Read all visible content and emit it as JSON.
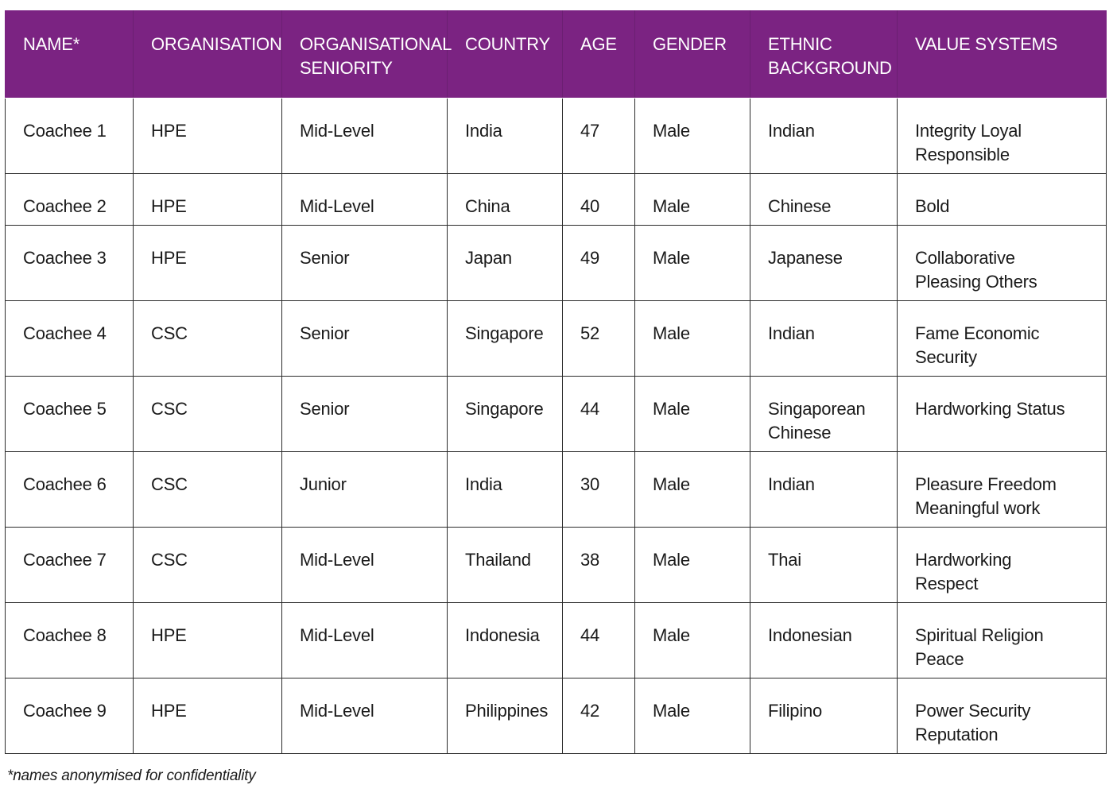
{
  "table": {
    "headers": [
      {
        "line1": "NAME*",
        "line2": ""
      },
      {
        "line1": "ORGANISATION",
        "line2": ""
      },
      {
        "line1": "ORGANISATIONAL",
        "line2": "SENIORITY"
      },
      {
        "line1": "COUNTRY",
        "line2": ""
      },
      {
        "line1": "AGE",
        "line2": ""
      },
      {
        "line1": "GENDER",
        "line2": ""
      },
      {
        "line1": "ETHNIC",
        "line2": "BACKGROUND"
      },
      {
        "line1": "VALUE SYSTEMS",
        "line2": ""
      }
    ],
    "rows": [
      {
        "name": "Coachee 1",
        "organisation": "HPE",
        "seniority": "Mid-Level",
        "country": "India",
        "age": "47",
        "gender": "Male",
        "ethnic_line1": "Indian",
        "ethnic_line2": "",
        "values_line1": "Integrity Loyal",
        "values_line2": "Responsible"
      },
      {
        "name": "Coachee 2",
        "organisation": "HPE",
        "seniority": "Mid-Level",
        "country": "China",
        "age": "40",
        "gender": "Male",
        "ethnic_line1": "Chinese",
        "ethnic_line2": "",
        "values_line1": "Bold",
        "values_line2": ""
      },
      {
        "name": "Coachee 3",
        "organisation": "HPE",
        "seniority": "Senior",
        "country": "Japan",
        "age": "49",
        "gender": "Male",
        "ethnic_line1": "Japanese",
        "ethnic_line2": "",
        "values_line1": "Collaborative",
        "values_line2": "Pleasing Others"
      },
      {
        "name": "Coachee 4",
        "organisation": "CSC",
        "seniority": "Senior",
        "country": "Singapore",
        "age": "52",
        "gender": "Male",
        "ethnic_line1": "Indian",
        "ethnic_line2": "",
        "values_line1": "Fame Economic",
        "values_line2": "Security"
      },
      {
        "name": "Coachee 5",
        "organisation": "CSC",
        "seniority": "Senior",
        "country": "Singapore",
        "age": "44",
        "gender": "Male",
        "ethnic_line1": "Singaporean",
        "ethnic_line2": "Chinese",
        "values_line1": "Hardworking Status",
        "values_line2": ""
      },
      {
        "name": "Coachee 6",
        "organisation": "CSC",
        "seniority": "Junior",
        "country": "India",
        "age": "30",
        "gender": "Male",
        "ethnic_line1": "Indian",
        "ethnic_line2": "",
        "values_line1": "Pleasure Freedom",
        "values_line2": "Meaningful work"
      },
      {
        "name": "Coachee 7",
        "organisation": "CSC",
        "seniority": "Mid-Level",
        "country": "Thailand",
        "age": "38",
        "gender": "Male",
        "ethnic_line1": "Thai",
        "ethnic_line2": "",
        "values_line1": "Hardworking",
        "values_line2": "Respect"
      },
      {
        "name": "Coachee 8",
        "organisation": "HPE",
        "seniority": "Mid-Level",
        "country": "Indonesia",
        "age": "44",
        "gender": "Male",
        "ethnic_line1": "Indonesian",
        "ethnic_line2": "",
        "values_line1": "Spiritual Religion",
        "values_line2": "Peace"
      },
      {
        "name": "Coachee 9",
        "organisation": "HPE",
        "seniority": "Mid-Level",
        "country": "Philippines",
        "age": "42",
        "gender": "Male",
        "ethnic_line1": "Filipino",
        "ethnic_line2": "",
        "values_line1": "Power Security",
        "values_line2": "Reputation"
      }
    ]
  },
  "footnote": "*names anonymised for confidentiality",
  "colors": {
    "header_background": "#7b2382",
    "header_text": "#ffffff",
    "border": "#2b2b2b"
  }
}
